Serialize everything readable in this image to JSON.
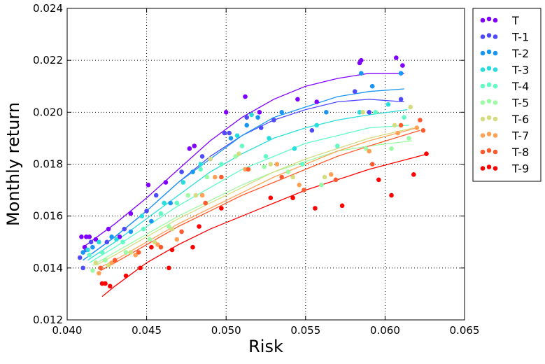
{
  "chart_data": {
    "type": "scatter",
    "title": "",
    "xlabel": "Risk",
    "ylabel": "Monthly return",
    "xlim": [
      0.04,
      0.065
    ],
    "ylim": [
      0.012,
      0.024
    ],
    "xticks": [
      "0.040",
      "0.045",
      "0.050",
      "0.055",
      "0.060",
      "0.065"
    ],
    "yticks": [
      "0.012",
      "0.014",
      "0.016",
      "0.018",
      "0.020",
      "0.022",
      "0.024"
    ],
    "grid": true,
    "legend_position": "outside-top-right",
    "series": [
      {
        "name": "T",
        "color": "#8000ff",
        "points": [
          [
            0.0409,
            0.0152
          ],
          [
            0.0411,
            0.0148
          ],
          [
            0.0412,
            0.0152
          ],
          [
            0.0414,
            0.0152
          ],
          [
            0.0418,
            0.0151
          ],
          [
            0.0426,
            0.0155
          ],
          [
            0.0433,
            0.0152
          ],
          [
            0.044,
            0.0161
          ],
          [
            0.0451,
            0.0172
          ],
          [
            0.0462,
            0.0173
          ],
          [
            0.0477,
            0.0186
          ],
          [
            0.048,
            0.0187
          ],
          [
            0.05,
            0.02
          ],
          [
            0.0512,
            0.0206
          ],
          [
            0.0521,
            0.02
          ],
          [
            0.0545,
            0.0205
          ],
          [
            0.0557,
            0.0204
          ],
          [
            0.0584,
            0.0219
          ],
          [
            0.0585,
            0.022
          ],
          [
            0.0607,
            0.0221
          ],
          [
            0.0611,
            0.0218
          ]
        ],
        "curve": [
          [
            0.041,
            0.0148
          ],
          [
            0.043,
            0.0157
          ],
          [
            0.045,
            0.0167
          ],
          [
            0.047,
            0.0178
          ],
          [
            0.049,
            0.0189
          ],
          [
            0.051,
            0.0198
          ],
          [
            0.053,
            0.0205
          ],
          [
            0.055,
            0.021
          ],
          [
            0.057,
            0.0213
          ],
          [
            0.059,
            0.0215
          ],
          [
            0.0612,
            0.0215
          ]
        ]
      },
      {
        "name": "T-1",
        "color": "#4f4bfc",
        "points": [
          [
            0.0408,
            0.0144
          ],
          [
            0.041,
            0.014
          ],
          [
            0.0412,
            0.0147
          ],
          [
            0.0415,
            0.015
          ],
          [
            0.0425,
            0.015
          ],
          [
            0.0436,
            0.0155
          ],
          [
            0.045,
            0.0162
          ],
          [
            0.0456,
            0.0168
          ],
          [
            0.0472,
            0.0177
          ],
          [
            0.0485,
            0.0183
          ],
          [
            0.0499,
            0.0192
          ],
          [
            0.0502,
            0.0192
          ],
          [
            0.0513,
            0.0198
          ],
          [
            0.0522,
            0.0194
          ],
          [
            0.053,
            0.0197
          ],
          [
            0.0554,
            0.0193
          ],
          [
            0.0581,
            0.0208
          ],
          [
            0.059,
            0.02
          ],
          [
            0.061,
            0.0205
          ]
        ],
        "curve": [
          [
            0.041,
            0.0143
          ],
          [
            0.043,
            0.0152
          ],
          [
            0.045,
            0.0162
          ],
          [
            0.047,
            0.0173
          ],
          [
            0.049,
            0.0183
          ],
          [
            0.051,
            0.0191
          ],
          [
            0.053,
            0.0197
          ],
          [
            0.055,
            0.0201
          ],
          [
            0.057,
            0.0204
          ],
          [
            0.059,
            0.0205
          ],
          [
            0.0612,
            0.0204
          ]
        ]
      },
      {
        "name": "T-2",
        "color": "#1996f3",
        "points": [
          [
            0.041,
            0.0146
          ],
          [
            0.0416,
            0.0148
          ],
          [
            0.0428,
            0.0152
          ],
          [
            0.044,
            0.0154
          ],
          [
            0.0453,
            0.0158
          ],
          [
            0.0465,
            0.0165
          ],
          [
            0.0479,
            0.0177
          ],
          [
            0.049,
            0.0182
          ],
          [
            0.0503,
            0.019
          ],
          [
            0.0513,
            0.0195
          ],
          [
            0.052,
            0.0198
          ],
          [
            0.0535,
            0.02
          ],
          [
            0.0563,
            0.02
          ],
          [
            0.0585,
            0.0215
          ],
          [
            0.0592,
            0.021
          ],
          [
            0.061,
            0.0215
          ]
        ],
        "curve": [
          [
            0.041,
            0.0143
          ],
          [
            0.043,
            0.0152
          ],
          [
            0.045,
            0.0162
          ],
          [
            0.047,
            0.0173
          ],
          [
            0.049,
            0.0182
          ],
          [
            0.051,
            0.0191
          ],
          [
            0.053,
            0.0198
          ],
          [
            0.055,
            0.0202
          ],
          [
            0.057,
            0.0206
          ],
          [
            0.059,
            0.0208
          ],
          [
            0.0612,
            0.0209
          ]
        ]
      },
      {
        "name": "T-3",
        "color": "#2adddd",
        "points": [
          [
            0.0413,
            0.0147
          ],
          [
            0.042,
            0.015
          ],
          [
            0.0431,
            0.0151
          ],
          [
            0.0447,
            0.016
          ],
          [
            0.0461,
            0.0165
          ],
          [
            0.0473,
            0.0173
          ],
          [
            0.0484,
            0.018
          ],
          [
            0.0507,
            0.0191
          ],
          [
            0.0516,
            0.0199
          ],
          [
            0.0527,
            0.019
          ],
          [
            0.0543,
            0.0186
          ],
          [
            0.0557,
            0.0195
          ],
          [
            0.0584,
            0.02
          ],
          [
            0.0602,
            0.0203
          ]
        ],
        "curve": [
          [
            0.0413,
            0.0143
          ],
          [
            0.043,
            0.015
          ],
          [
            0.045,
            0.0159
          ],
          [
            0.047,
            0.0168
          ],
          [
            0.049,
            0.0177
          ],
          [
            0.051,
            0.0184
          ],
          [
            0.053,
            0.019
          ],
          [
            0.055,
            0.0194
          ],
          [
            0.057,
            0.0197
          ],
          [
            0.059,
            0.0199
          ],
          [
            0.0614,
            0.0201
          ]
        ]
      },
      {
        "name": "T-4",
        "color": "#62fbc4",
        "points": [
          [
            0.0414,
            0.0145
          ],
          [
            0.0422,
            0.0146
          ],
          [
            0.0435,
            0.015
          ],
          [
            0.0448,
            0.0155
          ],
          [
            0.0459,
            0.0161
          ],
          [
            0.0469,
            0.0165
          ],
          [
            0.0484,
            0.0178
          ],
          [
            0.0497,
            0.018
          ],
          [
            0.051,
            0.0187
          ],
          [
            0.0525,
            0.0183
          ],
          [
            0.0548,
            0.018
          ],
          [
            0.057,
            0.0187
          ],
          [
            0.0594,
            0.02
          ],
          [
            0.0612,
            0.0198
          ]
        ],
        "curve": [
          [
            0.0414,
            0.0142
          ],
          [
            0.043,
            0.0148
          ],
          [
            0.045,
            0.0156
          ],
          [
            0.047,
            0.0164
          ],
          [
            0.049,
            0.0171
          ],
          [
            0.051,
            0.0178
          ],
          [
            0.053,
            0.0183
          ],
          [
            0.055,
            0.0188
          ],
          [
            0.057,
            0.0191
          ],
          [
            0.059,
            0.0194
          ],
          [
            0.0615,
            0.0195
          ]
        ]
      },
      {
        "name": "T-5",
        "color": "#9cfba4",
        "points": [
          [
            0.0416,
            0.0139
          ],
          [
            0.0424,
            0.0143
          ],
          [
            0.0437,
            0.0146
          ],
          [
            0.0452,
            0.0151
          ],
          [
            0.0464,
            0.0156
          ],
          [
            0.0476,
            0.0168
          ],
          [
            0.0488,
            0.0175
          ],
          [
            0.0506,
            0.0183
          ],
          [
            0.0524,
            0.0179
          ],
          [
            0.0539,
            0.0177
          ],
          [
            0.056,
            0.0172
          ],
          [
            0.0588,
            0.0186
          ],
          [
            0.0604,
            0.0186
          ],
          [
            0.0615,
            0.019
          ]
        ],
        "curve": [
          [
            0.0416,
            0.0141
          ],
          [
            0.043,
            0.0146
          ],
          [
            0.045,
            0.0153
          ],
          [
            0.047,
            0.016
          ],
          [
            0.049,
            0.0166
          ],
          [
            0.051,
            0.0172
          ],
          [
            0.053,
            0.0177
          ],
          [
            0.055,
            0.0181
          ],
          [
            0.057,
            0.0185
          ],
          [
            0.059,
            0.0187
          ],
          [
            0.0617,
            0.0189
          ]
        ]
      },
      {
        "name": "T-6",
        "color": "#d4dc7f",
        "points": [
          [
            0.0418,
            0.0142
          ],
          [
            0.0426,
            0.0141
          ],
          [
            0.044,
            0.0146
          ],
          [
            0.0455,
            0.015
          ],
          [
            0.0466,
            0.0155
          ],
          [
            0.0481,
            0.0168
          ],
          [
            0.049,
            0.0182
          ],
          [
            0.0508,
            0.0184
          ],
          [
            0.0528,
            0.018
          ],
          [
            0.0542,
            0.0175
          ],
          [
            0.0562,
            0.0175
          ],
          [
            0.0586,
            0.02
          ],
          [
            0.0606,
            0.0195
          ],
          [
            0.0616,
            0.0202
          ]
        ],
        "curve": [
          [
            0.0418,
            0.0141
          ],
          [
            0.043,
            0.0145
          ],
          [
            0.045,
            0.0152
          ],
          [
            0.047,
            0.0159
          ],
          [
            0.049,
            0.0165
          ],
          [
            0.051,
            0.0171
          ],
          [
            0.053,
            0.0177
          ],
          [
            0.055,
            0.0182
          ],
          [
            0.057,
            0.0186
          ],
          [
            0.059,
            0.019
          ],
          [
            0.0618,
            0.0194
          ]
        ]
      },
      {
        "name": "T-7",
        "color": "#ffa256",
        "points": [
          [
            0.042,
            0.0138
          ],
          [
            0.0428,
            0.0142
          ],
          [
            0.0443,
            0.0145
          ],
          [
            0.0457,
            0.0149
          ],
          [
            0.0469,
            0.0151
          ],
          [
            0.0485,
            0.0168
          ],
          [
            0.0493,
            0.0175
          ],
          [
            0.0512,
            0.0178
          ],
          [
            0.0532,
            0.018
          ],
          [
            0.0546,
            0.0172
          ],
          [
            0.0566,
            0.0176
          ],
          [
            0.059,
            0.0185
          ],
          [
            0.0608,
            0.0192
          ],
          [
            0.062,
            0.0194
          ]
        ],
        "curve": [
          [
            0.042,
            0.014
          ],
          [
            0.043,
            0.0143
          ],
          [
            0.045,
            0.015
          ],
          [
            0.047,
            0.0157
          ],
          [
            0.049,
            0.0163
          ],
          [
            0.051,
            0.0169
          ],
          [
            0.053,
            0.0175
          ],
          [
            0.055,
            0.018
          ],
          [
            0.057,
            0.0185
          ],
          [
            0.059,
            0.0189
          ],
          [
            0.062,
            0.0194
          ]
        ]
      },
      {
        "name": "T-8",
        "color": "#ff5a2e",
        "points": [
          [
            0.0421,
            0.014
          ],
          [
            0.043,
            0.0143
          ],
          [
            0.0445,
            0.0146
          ],
          [
            0.0459,
            0.0148
          ],
          [
            0.0472,
            0.0154
          ],
          [
            0.0487,
            0.0165
          ],
          [
            0.0497,
            0.0175
          ],
          [
            0.0514,
            0.0178
          ],
          [
            0.0535,
            0.0175
          ],
          [
            0.0549,
            0.017
          ],
          [
            0.0569,
            0.0174
          ],
          [
            0.0592,
            0.018
          ],
          [
            0.061,
            0.0195
          ],
          [
            0.0622,
            0.0197
          ],
          [
            0.0624,
            0.0193
          ]
        ],
        "curve": [
          [
            0.0421,
            0.0139
          ],
          [
            0.043,
            0.0142
          ],
          [
            0.045,
            0.0149
          ],
          [
            0.047,
            0.0156
          ],
          [
            0.049,
            0.0162
          ],
          [
            0.051,
            0.0168
          ],
          [
            0.053,
            0.0173
          ],
          [
            0.055,
            0.0178
          ],
          [
            0.057,
            0.0183
          ],
          [
            0.059,
            0.0187
          ],
          [
            0.0622,
            0.0193
          ]
        ]
      },
      {
        "name": "T-9",
        "color": "#ff0000",
        "points": [
          [
            0.0422,
            0.0134
          ],
          [
            0.0424,
            0.0134
          ],
          [
            0.0427,
            0.0133
          ],
          [
            0.0437,
            0.0137
          ],
          [
            0.0446,
            0.014
          ],
          [
            0.0453,
            0.0148
          ],
          [
            0.0464,
            0.014
          ],
          [
            0.0466,
            0.0147
          ],
          [
            0.0479,
            0.0148
          ],
          [
            0.0483,
            0.0156
          ],
          [
            0.0497,
            0.0163
          ],
          [
            0.0528,
            0.0167
          ],
          [
            0.0542,
            0.0167
          ],
          [
            0.0556,
            0.0163
          ],
          [
            0.0573,
            0.0164
          ],
          [
            0.0596,
            0.0174
          ],
          [
            0.0604,
            0.0168
          ],
          [
            0.0618,
            0.0176
          ],
          [
            0.0626,
            0.0184
          ]
        ],
        "curve": [
          [
            0.0422,
            0.0129
          ],
          [
            0.043,
            0.0133
          ],
          [
            0.045,
            0.0142
          ],
          [
            0.047,
            0.0149
          ],
          [
            0.049,
            0.0155
          ],
          [
            0.051,
            0.016
          ],
          [
            0.053,
            0.0165
          ],
          [
            0.055,
            0.017
          ],
          [
            0.057,
            0.0174
          ],
          [
            0.059,
            0.0178
          ],
          [
            0.0627,
            0.0184
          ]
        ]
      }
    ]
  }
}
